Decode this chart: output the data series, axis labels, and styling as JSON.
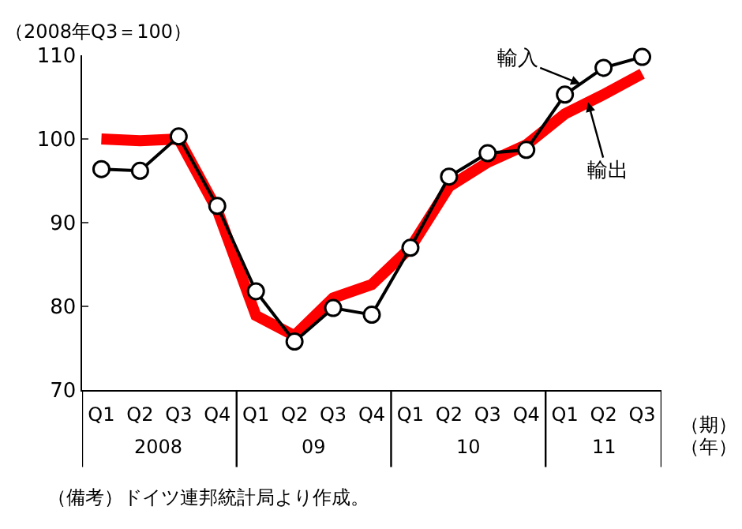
{
  "chart_data": {
    "type": "line",
    "ylabel": "（2008年Q3＝100）",
    "xlabel": "（期）",
    "categories": [
      "Q1",
      "Q2",
      "Q3",
      "Q4",
      "Q1",
      "Q2",
      "Q3",
      "Q4",
      "Q1",
      "Q2",
      "Q3",
      "Q4",
      "Q1",
      "Q2",
      "Q3"
    ],
    "series": [
      {
        "name": "輸出",
        "color": "#ff0000",
        "marker": "none",
        "values": [
          100,
          99.8,
          100,
          91.5,
          78.9,
          76.5,
          81,
          82.6,
          87,
          94.3,
          97.2,
          99.3,
          103,
          105.3,
          107.8
        ]
      },
      {
        "name": "輸入",
        "color": "#000000",
        "marker": "circle",
        "values": [
          96.4,
          96.2,
          100.3,
          92,
          81.8,
          75.8,
          79.8,
          79,
          87,
          95.5,
          98.3,
          98.7,
          105.3,
          108.5,
          109.8
        ]
      }
    ],
    "ylim": [
      70,
      110
    ],
    "yticks": [
      70,
      80,
      90,
      100,
      110
    ],
    "grid": false,
    "legend": false,
    "annotations": [
      "2008",
      "09",
      "10",
      "11",
      "（年）",
      "（備考）ドイツ連邦統計局より作成。"
    ]
  }
}
